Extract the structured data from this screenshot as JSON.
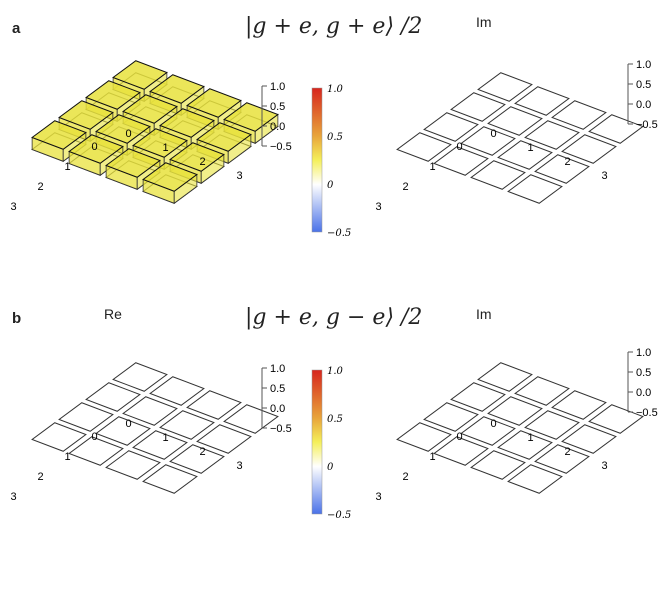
{
  "panels": [
    {
      "letter": "a",
      "title": "|g + e, g + e⟩ /2",
      "left_label": "",
      "right_label": "Im"
    },
    {
      "letter": "b",
      "title": "|g + e, g − e⟩ /2",
      "left_label": "Re",
      "right_label": "Im"
    }
  ],
  "z_ticks": [
    "1.0",
    "0.5",
    "0.0",
    "−0.5"
  ],
  "x_ticks": [
    "0",
    "1",
    "2",
    "3"
  ],
  "y_ticks": [
    "0",
    "1",
    "2",
    "3"
  ],
  "colorbar": {
    "ticks": [
      "1.0",
      "0.5",
      "0",
      "−0.5"
    ],
    "colors": [
      "#d7261e",
      "#e8a33a",
      "#f4ef5a",
      "#ffffff",
      "#4a72e8"
    ]
  },
  "chart_data": [
    {
      "type": "bar3d",
      "panel": "a",
      "part": "Re",
      "zlim": [
        -0.5,
        1.0
      ],
      "values": [
        [
          0.25,
          0.25,
          0.25,
          0.25
        ],
        [
          0.25,
          0.25,
          0.25,
          0.25
        ],
        [
          0.25,
          0.25,
          0.25,
          0.25
        ],
        [
          0.25,
          0.25,
          0.25,
          0.25
        ]
      ]
    },
    {
      "type": "bar3d",
      "panel": "a",
      "part": "Im",
      "zlim": [
        -0.5,
        1.0
      ],
      "values": [
        [
          0,
          0,
          0,
          0
        ],
        [
          0,
          0,
          0,
          0
        ],
        [
          0,
          0,
          0,
          0
        ],
        [
          0,
          0,
          0,
          0
        ]
      ]
    },
    {
      "type": "bar3d",
      "panel": "b",
      "part": "Re",
      "zlim": [
        -0.5,
        1.0
      ],
      "values": [
        [
          0,
          0,
          0,
          0
        ],
        [
          0,
          0,
          0,
          0
        ],
        [
          0,
          0,
          0,
          0
        ],
        [
          0,
          0,
          0,
          0
        ]
      ]
    },
    {
      "type": "bar3d",
      "panel": "b",
      "part": "Im",
      "zlim": [
        -0.5,
        1.0
      ],
      "values": [
        [
          0,
          0,
          0,
          0
        ],
        [
          0,
          0,
          0,
          0
        ],
        [
          0,
          0,
          0,
          0
        ],
        [
          0,
          0,
          0,
          0
        ]
      ]
    }
  ]
}
